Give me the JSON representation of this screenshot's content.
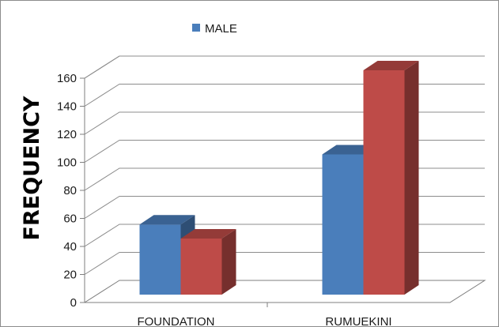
{
  "chart_data": {
    "type": "bar",
    "title": "",
    "xlabel": "",
    "ylabel": "FREQUENCY",
    "ylim": [
      0,
      160
    ],
    "y_ticks": [
      0,
      20,
      40,
      60,
      80,
      100,
      120,
      140,
      160
    ],
    "categories": [
      "FOUNDATION",
      "RUMUEKINI"
    ],
    "series": [
      {
        "name": "MALE",
        "values": [
          50,
          100
        ],
        "color": "#4a7ebb"
      },
      {
        "values": [
          40,
          160
        ],
        "color": "#be4b48"
      }
    ],
    "legend_position": "top",
    "grid": true,
    "style": "3d-clustered-column"
  }
}
